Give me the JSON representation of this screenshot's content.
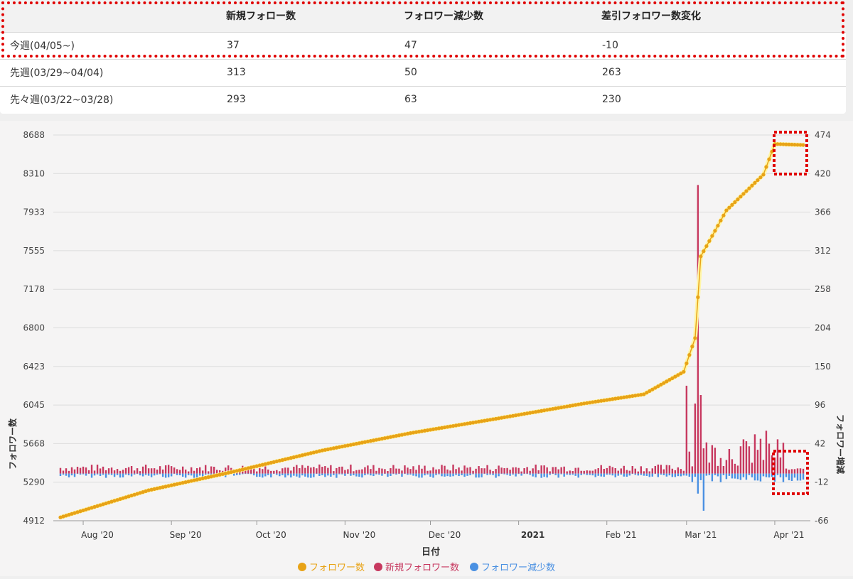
{
  "table": {
    "headers": [
      "",
      "新規フォロー数",
      "フォロワー減少数",
      "差引フォロワー数変化"
    ],
    "rows": [
      {
        "label": "今週(04/05~)",
        "new": "37",
        "lost": "47",
        "diff": "-10"
      },
      {
        "label": "先週(03/29~04/04)",
        "new": "313",
        "lost": "50",
        "diff": "263"
      },
      {
        "label": "先々週(03/22~03/28)",
        "new": "293",
        "lost": "63",
        "diff": "230"
      }
    ]
  },
  "chart_data": {
    "type": "bar+line",
    "xlabel": "日付",
    "ylabel_left": "フォロワー数",
    "ylabel_right": "フォロワー増減",
    "y_left_ticks": [
      "8688",
      "8310",
      "7933",
      "7555",
      "7178",
      "6800",
      "6423",
      "6045",
      "5668",
      "5290",
      "4912"
    ],
    "y_right_ticks": [
      "474",
      "420",
      "366",
      "312",
      "258",
      "204",
      "150",
      "96",
      "42",
      "-12",
      "-66"
    ],
    "y_left_range": [
      4912,
      8688
    ],
    "y_right_range": [
      -66,
      474
    ],
    "x_ticks": [
      {
        "label": "Aug '20",
        "bold": false
      },
      {
        "label": "Sep '20",
        "bold": false
      },
      {
        "label": "Oct '20",
        "bold": false
      },
      {
        "label": "Nov '20",
        "bold": false
      },
      {
        "label": "Dec '20",
        "bold": false
      },
      {
        "label": "2021",
        "bold": true
      },
      {
        "label": "Feb '21",
        "bold": false
      },
      {
        "label": "Mar '21",
        "bold": false
      },
      {
        "label": "Apr '21",
        "bold": false
      }
    ],
    "x_range": [
      "2020-07-24",
      "2021-04-11"
    ],
    "legend_position": "bottom-center",
    "series": [
      {
        "name": "フォロワー数",
        "type": "line",
        "axis": "left",
        "color": "#e8a317",
        "points": [
          [
            "2020-07-24",
            4945
          ],
          [
            "2020-08-24",
            5210
          ],
          [
            "2020-09-24",
            5400
          ],
          [
            "2020-10-24",
            5600
          ],
          [
            "2020-11-24",
            5770
          ],
          [
            "2020-12-24",
            5910
          ],
          [
            "2021-01-24",
            6060
          ],
          [
            "2021-02-14",
            6150
          ],
          [
            "2021-02-28",
            6370
          ],
          [
            "2021-03-04",
            6700
          ],
          [
            "2021-03-06",
            7500
          ],
          [
            "2021-03-15",
            7950
          ],
          [
            "2021-03-28",
            8300
          ],
          [
            "2021-04-01",
            8600
          ],
          [
            "2021-04-11",
            8590
          ]
        ]
      },
      {
        "name": "新規フォロワー数",
        "type": "bar",
        "axis": "right",
        "color": "#c7385f",
        "baseline": 3,
        "spikes": [
          [
            "2021-03-01",
            123
          ],
          [
            "2021-03-04",
            98
          ],
          [
            "2021-03-05",
            404
          ],
          [
            "2021-03-06",
            110
          ],
          [
            "2021-03-25",
            55
          ],
          [
            "2021-03-29",
            60
          ]
        ]
      },
      {
        "name": "フォロワー減少数",
        "type": "bar",
        "axis": "right",
        "color": "#4a90e2",
        "baseline": -3,
        "spikes": [
          [
            "2021-03-07",
            -52
          ],
          [
            "2021-03-05",
            -28
          ]
        ]
      }
    ]
  },
  "colors": {
    "line": "#e8a317",
    "new_bar": "#c7385f",
    "lost_bar": "#4a90e2",
    "highlight": "#e00000"
  }
}
